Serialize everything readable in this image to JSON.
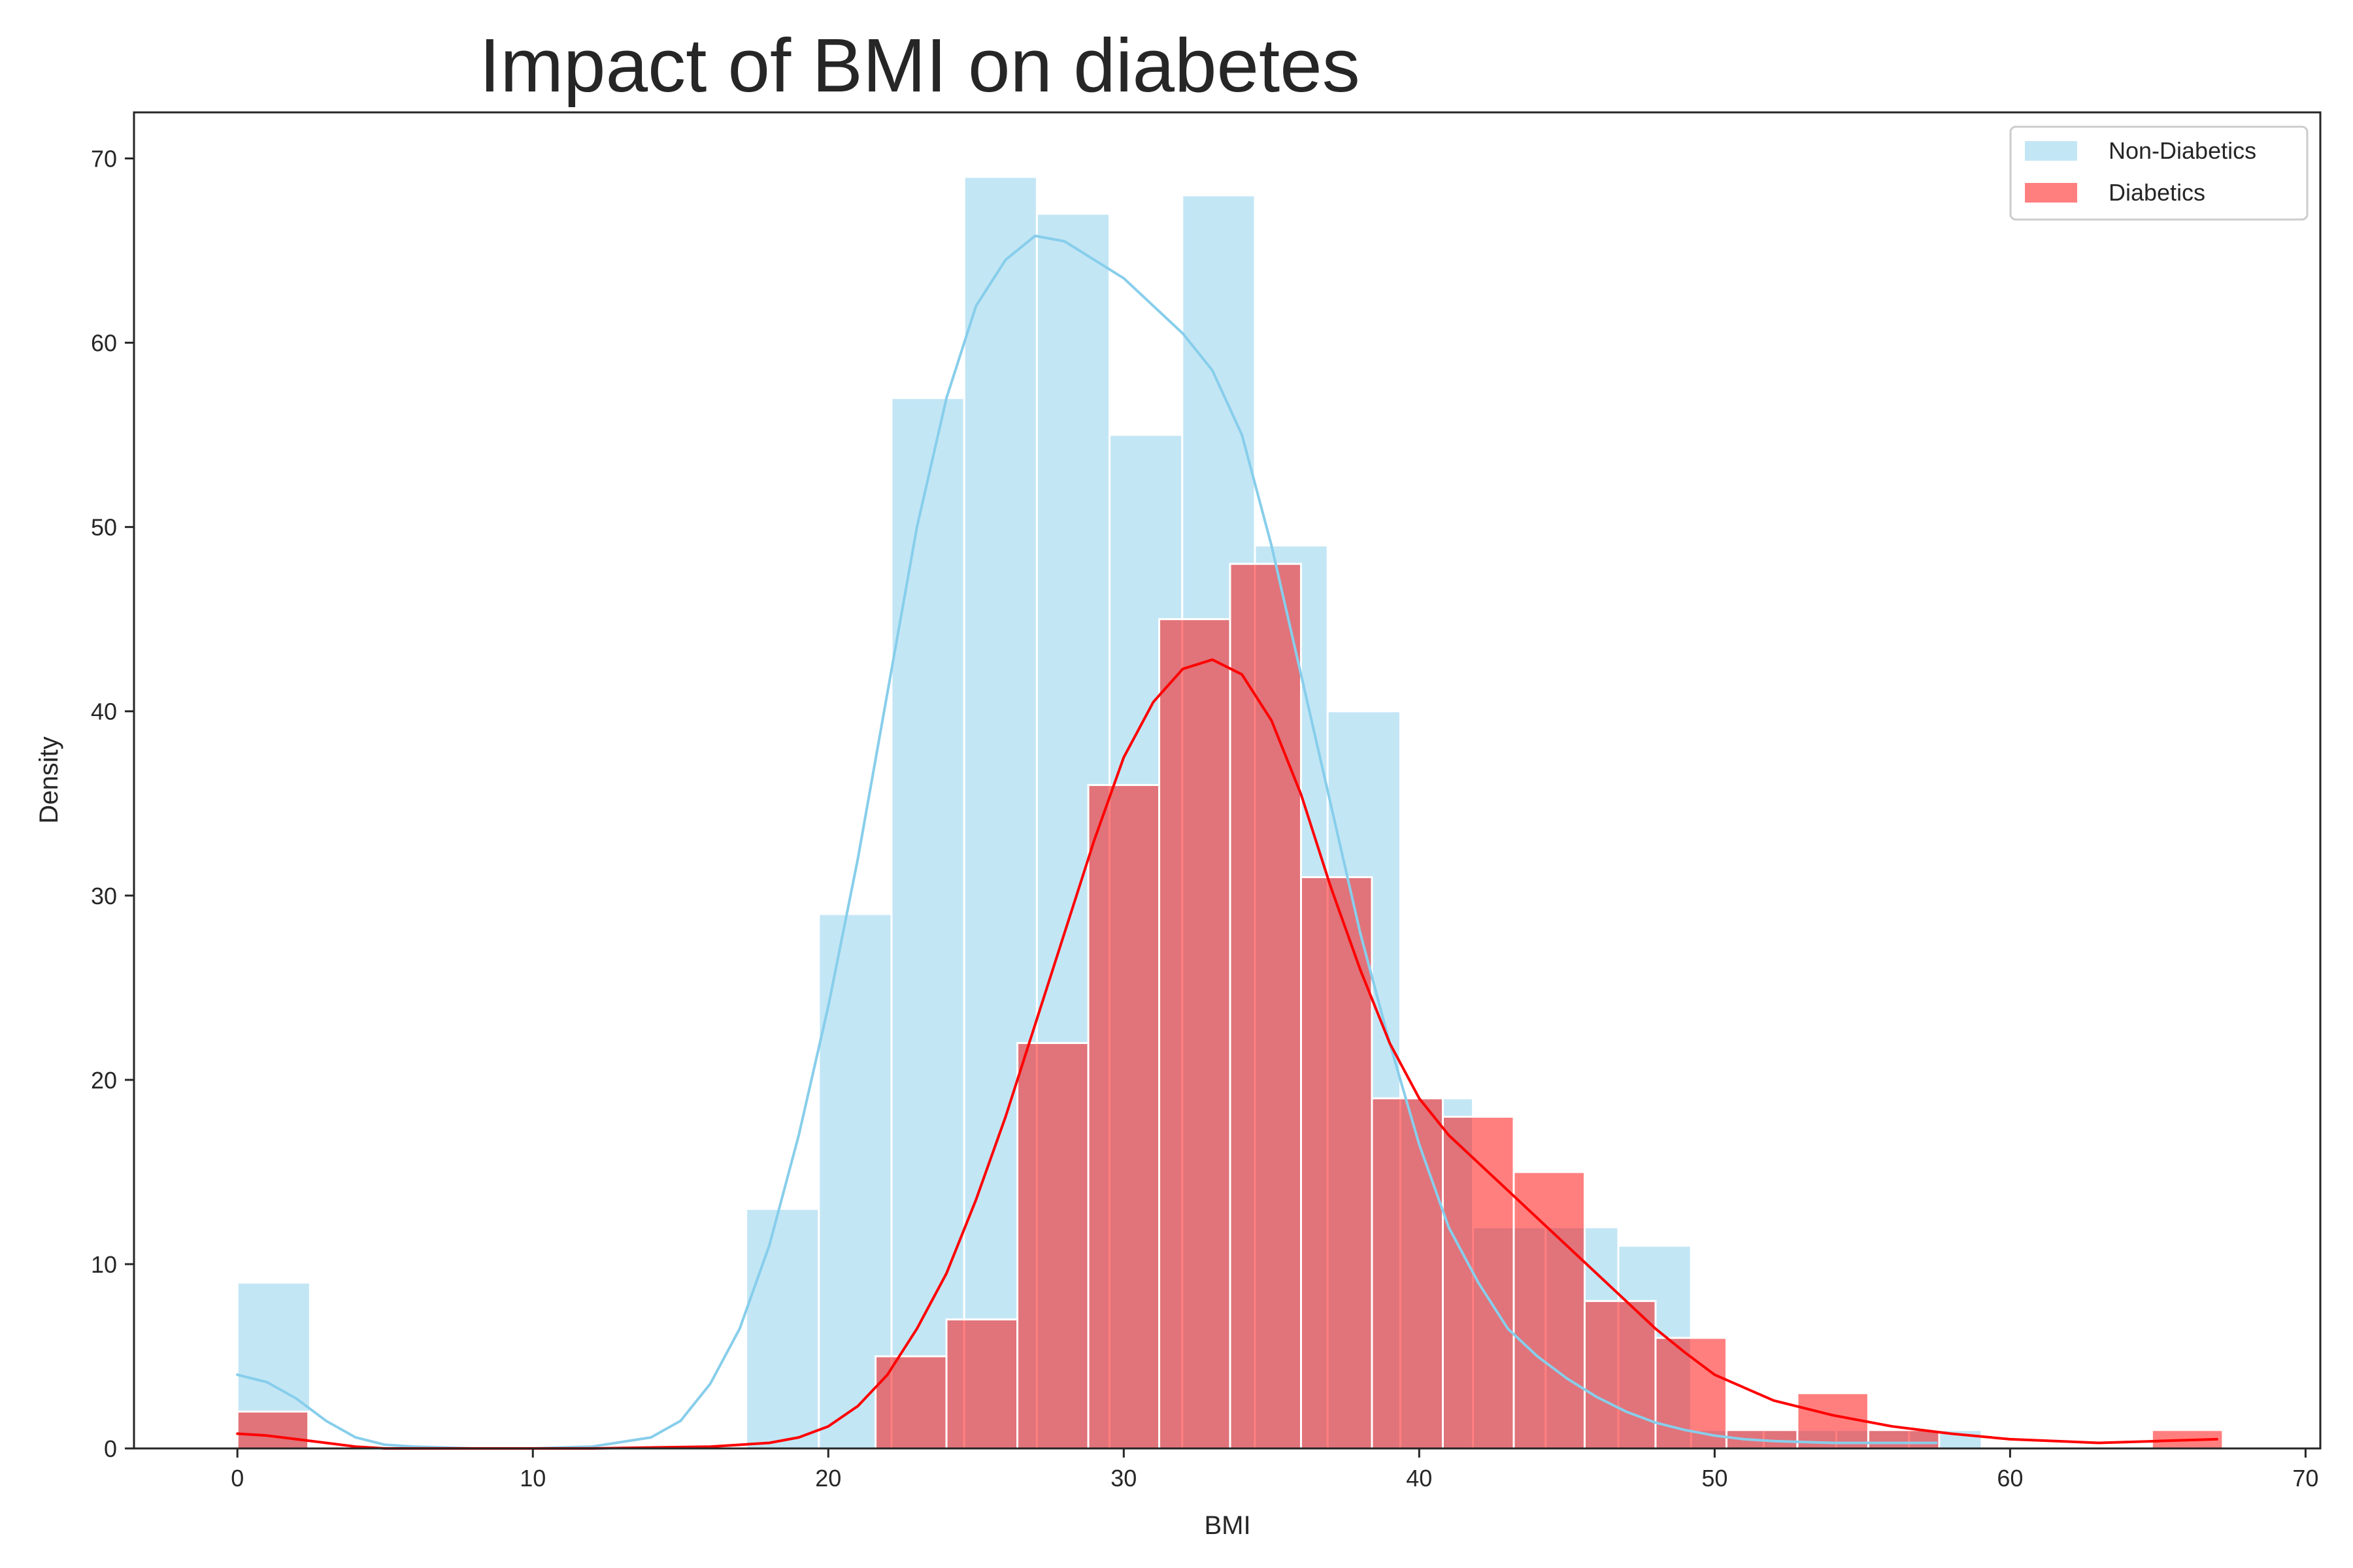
{
  "chart_data": {
    "type": "histogram",
    "title": "Impact of BMI on diabetes",
    "xlabel": "BMI",
    "ylabel": "Density",
    "xlim": [
      -3.5,
      70.5
    ],
    "ylim": [
      0,
      72.5
    ],
    "xticks": [
      0,
      10,
      20,
      30,
      40,
      50,
      60,
      70
    ],
    "yticks": [
      0,
      10,
      20,
      30,
      40,
      50,
      60,
      70
    ],
    "legend_position": "top-right",
    "series": [
      {
        "name": "Non-Diabetics",
        "color": "#87ceeb",
        "bin_start": 0,
        "bin_width": 2.46,
        "values": [
          9,
          0,
          0,
          0,
          0,
          0,
          0,
          13,
          29,
          57,
          69,
          67,
          55,
          68,
          49,
          40,
          19,
          12,
          12,
          11,
          1,
          1,
          1,
          1
        ],
        "kde_x": [
          0,
          1,
          2,
          3,
          4,
          5,
          6,
          8,
          10,
          12,
          14,
          15,
          16,
          17,
          18,
          19,
          20,
          21,
          22,
          23,
          24,
          25,
          26,
          27,
          28,
          29,
          30,
          31,
          32,
          33,
          34,
          35,
          36,
          37,
          38,
          39,
          40,
          41,
          42,
          43,
          44,
          45,
          46,
          47,
          48,
          49,
          50,
          51,
          52,
          54,
          56,
          57.5
        ],
        "kde_y": [
          4.0,
          3.6,
          2.7,
          1.5,
          0.6,
          0.2,
          0.1,
          0.0,
          0.0,
          0.1,
          0.6,
          1.5,
          3.5,
          6.5,
          11.0,
          17.0,
          24.0,
          32.0,
          41.0,
          50.0,
          57.0,
          62.0,
          64.5,
          65.8,
          65.5,
          64.5,
          63.5,
          62.0,
          60.5,
          58.5,
          55.0,
          49.0,
          42.0,
          35.0,
          28.0,
          22.0,
          16.5,
          12.0,
          9.0,
          6.5,
          5.0,
          3.8,
          2.8,
          2.0,
          1.4,
          1.0,
          0.7,
          0.5,
          0.4,
          0.3,
          0.3,
          0.3
        ]
      },
      {
        "name": "Diabetics",
        "color": "#ff0000",
        "bin_start": 0,
        "bin_width": 2.4,
        "values": [
          2,
          0,
          0,
          0,
          0,
          0,
          0,
          0,
          0,
          5,
          7,
          22,
          36,
          45,
          48,
          31,
          19,
          18,
          15,
          8,
          6,
          1,
          3,
          1,
          0,
          0,
          0,
          1
        ],
        "kde_x": [
          0,
          1,
          2,
          3,
          4,
          5,
          8,
          12,
          16,
          18,
          19,
          20,
          21,
          22,
          23,
          24,
          25,
          26,
          27,
          28,
          29,
          30,
          31,
          32,
          33,
          34,
          35,
          36,
          37,
          38,
          39,
          40,
          41,
          42,
          43,
          44,
          45,
          46,
          47,
          48,
          49,
          50,
          52,
          54,
          56,
          58,
          60,
          63,
          65,
          67
        ],
        "kde_y": [
          0.8,
          0.7,
          0.5,
          0.3,
          0.1,
          0.0,
          0.0,
          0.0,
          0.1,
          0.3,
          0.6,
          1.2,
          2.3,
          4.0,
          6.5,
          9.5,
          13.5,
          18.0,
          23.0,
          28.0,
          33.0,
          37.5,
          40.5,
          42.3,
          42.8,
          42.0,
          39.5,
          35.5,
          30.5,
          26.0,
          22.0,
          19.0,
          17.0,
          15.5,
          14.0,
          12.5,
          11.0,
          9.5,
          8.0,
          6.5,
          5.2,
          4.0,
          2.6,
          1.8,
          1.2,
          0.8,
          0.5,
          0.3,
          0.4,
          0.5
        ]
      }
    ]
  }
}
